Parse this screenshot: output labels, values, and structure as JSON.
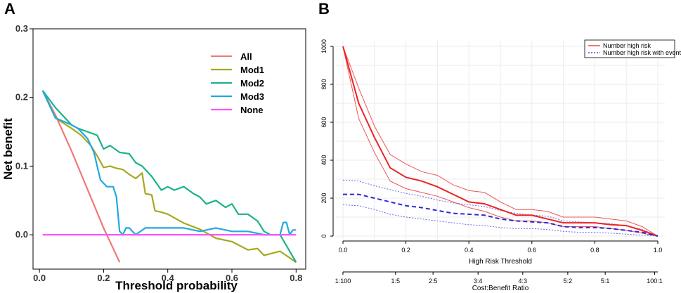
{
  "panels": {
    "a_label": "A",
    "b_label": "B"
  },
  "chart_data": [
    {
      "type": "line",
      "title": "",
      "xlabel": "Threshold probability",
      "ylabel": "Net benefit",
      "xlim": [
        -0.02,
        0.83
      ],
      "ylim": [
        -0.05,
        0.3
      ],
      "x_ticks": [
        0.0,
        0.2,
        0.4,
        0.6,
        0.8
      ],
      "x_tick_labels": [
        "0.0",
        "0.2",
        "0.4",
        "0.6",
        "0.8"
      ],
      "y_ticks": [
        0.0,
        0.1,
        0.2,
        0.3
      ],
      "y_tick_labels": [
        "0.0",
        "0.1",
        "0.2",
        "0.3"
      ],
      "legend_position": "top-right",
      "series": [
        {
          "name": "All",
          "color": "#f07878",
          "x": [
            0.01,
            0.05,
            0.1,
            0.15,
            0.2,
            0.25
          ],
          "y": [
            0.21,
            0.174,
            0.122,
            0.066,
            0.01,
            -0.04
          ]
        },
        {
          "name": "Mod1",
          "color": "#a8a81e",
          "x": [
            0.01,
            0.05,
            0.1,
            0.13,
            0.16,
            0.18,
            0.2,
            0.22,
            0.24,
            0.26,
            0.28,
            0.3,
            0.32,
            0.33,
            0.35,
            0.36,
            0.38,
            0.4,
            0.45,
            0.5,
            0.55,
            0.6,
            0.65,
            0.68,
            0.7,
            0.75,
            0.8
          ],
          "y": [
            0.21,
            0.17,
            0.155,
            0.145,
            0.13,
            0.115,
            0.098,
            0.1,
            0.097,
            0.095,
            0.088,
            0.082,
            0.09,
            0.06,
            0.058,
            0.035,
            0.033,
            0.03,
            0.017,
            0.008,
            -0.005,
            -0.01,
            -0.022,
            -0.02,
            -0.03,
            -0.024,
            -0.04
          ]
        },
        {
          "name": "Mod2",
          "color": "#1ab38a",
          "x": [
            0.01,
            0.05,
            0.1,
            0.12,
            0.15,
            0.18,
            0.2,
            0.22,
            0.25,
            0.28,
            0.3,
            0.32,
            0.35,
            0.38,
            0.4,
            0.42,
            0.45,
            0.48,
            0.5,
            0.52,
            0.55,
            0.58,
            0.6,
            0.62,
            0.65,
            0.68,
            0.7,
            0.72,
            0.75,
            0.8
          ],
          "y": [
            0.21,
            0.185,
            0.16,
            0.155,
            0.15,
            0.145,
            0.125,
            0.13,
            0.12,
            0.118,
            0.105,
            0.1,
            0.085,
            0.065,
            0.07,
            0.065,
            0.07,
            0.06,
            0.055,
            0.045,
            0.05,
            0.04,
            0.045,
            0.03,
            0.03,
            0.02,
            0.005,
            0.0,
            0.0,
            -0.04
          ]
        },
        {
          "name": "Mod3",
          "color": "#21a8df",
          "x": [
            0.01,
            0.05,
            0.1,
            0.12,
            0.15,
            0.17,
            0.19,
            0.21,
            0.23,
            0.24,
            0.25,
            0.26,
            0.27,
            0.28,
            0.3,
            0.33,
            0.36,
            0.4,
            0.45,
            0.5,
            0.55,
            0.6,
            0.65,
            0.7,
            0.75,
            0.76,
            0.77,
            0.78,
            0.79,
            0.8
          ],
          "y": [
            0.21,
            0.17,
            0.16,
            0.155,
            0.14,
            0.12,
            0.08,
            0.07,
            0.07,
            0.055,
            0.005,
            0.0,
            0.01,
            0.01,
            0.0,
            0.01,
            0.01,
            0.01,
            0.01,
            0.005,
            0.01,
            0.005,
            0.005,
            0.0,
            0.0,
            0.018,
            0.018,
            0.0,
            0.007,
            0.007
          ]
        },
        {
          "name": "None",
          "color": "#ff55ff",
          "x": [
            0.01,
            0.8
          ],
          "y": [
            0.0,
            0.0
          ]
        }
      ]
    },
    {
      "type": "line",
      "title": "",
      "xlabel": "High Risk Threshold",
      "x2label": "Cost:Benefit Ratio",
      "ylabel": "",
      "xlim": [
        0.0,
        1.0
      ],
      "ylim": [
        0,
        1000
      ],
      "x_ticks": [
        0.0,
        0.2,
        0.4,
        0.6,
        0.8,
        1.0
      ],
      "x_tick_labels": [
        "0.0",
        "0.2",
        "0.4",
        "0.6",
        "0.8",
        "1.0"
      ],
      "y_ticks": [
        0,
        200,
        400,
        600,
        800,
        1000
      ],
      "y_tick_labels": [
        "0",
        "200",
        "400",
        "600",
        "800",
        "1000"
      ],
      "x2_ticks": [
        0.0,
        0.167,
        0.286,
        0.429,
        0.571,
        0.714,
        0.833,
        0.99
      ],
      "x2_tick_labels": [
        "1:100",
        "1:5",
        "2:5",
        "3:4",
        "4:3",
        "5:2",
        "5:1",
        "100:1"
      ],
      "grid": true,
      "legend_position": "top-right",
      "series": [
        {
          "name": "Number high risk",
          "color": "#ee2222",
          "style": "solid",
          "x": [
            0.0,
            0.05,
            0.1,
            0.15,
            0.2,
            0.25,
            0.3,
            0.35,
            0.4,
            0.45,
            0.5,
            0.55,
            0.6,
            0.65,
            0.7,
            0.75,
            0.8,
            0.85,
            0.9,
            0.95,
            1.0
          ],
          "y": [
            1000,
            700,
            520,
            360,
            310,
            290,
            260,
            220,
            180,
            170,
            140,
            110,
            110,
            90,
            70,
            70,
            70,
            60,
            55,
            30,
            0
          ]
        },
        {
          "name": "Number high risk with event",
          "color": "#2a2ad8",
          "style": "dashed",
          "x": [
            0.0,
            0.05,
            0.1,
            0.15,
            0.2,
            0.25,
            0.3,
            0.35,
            0.4,
            0.45,
            0.5,
            0.55,
            0.6,
            0.65,
            0.7,
            0.75,
            0.8,
            0.85,
            0.9,
            0.95,
            1.0
          ],
          "y": [
            220,
            220,
            200,
            180,
            160,
            150,
            135,
            120,
            115,
            110,
            90,
            80,
            75,
            70,
            50,
            45,
            45,
            40,
            30,
            20,
            0
          ]
        }
      ],
      "bands": [
        {
          "of": "Number high risk",
          "color": "#ee5555",
          "style": "solid",
          "upper": [
            1000,
            780,
            580,
            430,
            380,
            340,
            320,
            270,
            240,
            230,
            180,
            140,
            140,
            130,
            100,
            100,
            100,
            90,
            80,
            50,
            0
          ],
          "lower": [
            1000,
            620,
            440,
            290,
            250,
            230,
            210,
            180,
            150,
            130,
            100,
            80,
            80,
            70,
            50,
            50,
            50,
            40,
            30,
            15,
            0
          ]
        },
        {
          "of": "Number high risk with event",
          "color": "#6666ee",
          "style": "dotted",
          "upper": [
            295,
            290,
            265,
            245,
            225,
            210,
            190,
            175,
            165,
            155,
            135,
            120,
            110,
            105,
            80,
            75,
            70,
            65,
            55,
            35,
            0
          ],
          "lower": [
            165,
            160,
            140,
            115,
            100,
            90,
            80,
            70,
            60,
            55,
            45,
            40,
            40,
            35,
            25,
            20,
            20,
            15,
            10,
            5,
            0
          ]
        }
      ]
    }
  ]
}
